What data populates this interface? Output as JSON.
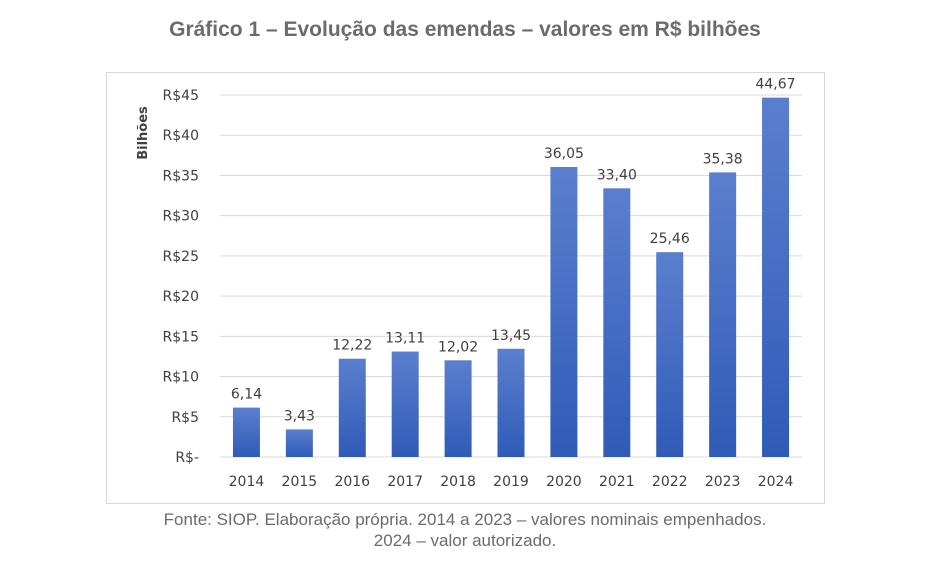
{
  "chart_data": {
    "type": "bar",
    "title": "Gráfico 1 – Evolução das emendas – valores em R$ bilhões",
    "ylabel": "Bilhões",
    "xlabel": "",
    "categories": [
      "2014",
      "2015",
      "2016",
      "2017",
      "2018",
      "2019",
      "2020",
      "2021",
      "2022",
      "2023",
      "2024"
    ],
    "values": [
      6.14,
      3.43,
      12.22,
      13.11,
      12.02,
      13.45,
      36.05,
      33.4,
      25.46,
      35.38,
      44.67
    ],
    "data_labels": [
      "6,14",
      "3,43",
      "12,22",
      "13,11",
      "12,02",
      "13,45",
      "36,05",
      "33,40",
      "25,46",
      "35,38",
      "44,67"
    ],
    "ylim": [
      0,
      45
    ],
    "yticks": [
      0,
      5,
      10,
      15,
      20,
      25,
      30,
      35,
      40,
      45
    ],
    "ytick_labels": [
      "R$-",
      "R$5",
      "R$10",
      "R$15",
      "R$20",
      "R$25",
      "R$30",
      "R$35",
      "R$40",
      "R$45"
    ],
    "grid": true,
    "bar_color_top": "#5b7fce",
    "bar_color_bottom": "#2f5bb7",
    "grid_color": "#d9d9d9"
  },
  "source_line1": "Fonte: SIOP. Elaboração própria. 2014 a 2023 – valores nominais empenhados.",
  "source_line2": "2024 – valor autorizado."
}
